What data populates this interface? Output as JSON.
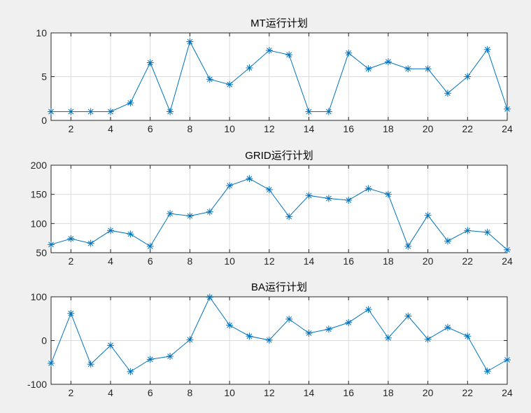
{
  "chart_data": [
    {
      "type": "line",
      "title": "MT运行计划",
      "xlabel": "",
      "ylabel": "",
      "x": [
        1,
        2,
        3,
        4,
        5,
        6,
        7,
        8,
        9,
        10,
        11,
        12,
        13,
        14,
        15,
        16,
        17,
        18,
        19,
        20,
        21,
        22,
        23,
        24
      ],
      "xlim": [
        1,
        24
      ],
      "ylim": [
        0,
        10
      ],
      "xticks": [
        2,
        4,
        6,
        8,
        10,
        12,
        14,
        16,
        18,
        20,
        22,
        24
      ],
      "yticks": [
        0,
        5,
        10
      ],
      "grid": true,
      "marker": "asterisk",
      "color": "#0072bd",
      "series": [
        {
          "values": [
            1,
            1,
            1,
            1,
            2,
            6.6,
            1,
            9,
            4.7,
            4.1,
            6,
            8,
            7.5,
            1,
            1,
            7.7,
            5.9,
            6.7,
            5.9,
            5.9,
            3.1,
            5,
            8.1,
            1.3
          ]
        }
      ]
    },
    {
      "type": "line",
      "title": "GRID运行计划",
      "xlabel": "",
      "ylabel": "",
      "x": [
        1,
        2,
        3,
        4,
        5,
        6,
        7,
        8,
        9,
        10,
        11,
        12,
        13,
        14,
        15,
        16,
        17,
        18,
        19,
        20,
        21,
        22,
        23,
        24
      ],
      "xlim": [
        1,
        24
      ],
      "ylim": [
        50,
        200
      ],
      "xticks": [
        2,
        4,
        6,
        8,
        10,
        12,
        14,
        16,
        18,
        20,
        22,
        24
      ],
      "yticks": [
        50,
        100,
        150,
        200
      ],
      "grid": true,
      "marker": "asterisk",
      "color": "#0072bd",
      "series": [
        {
          "values": [
            64,
            74,
            66,
            88,
            82,
            61,
            117,
            113,
            120,
            165,
            177,
            158,
            112,
            148,
            143,
            140,
            160,
            150,
            61,
            114,
            70,
            88,
            85,
            55
          ]
        }
      ]
    },
    {
      "type": "line",
      "title": "BA运行计划",
      "xlabel": "",
      "ylabel": "",
      "x": [
        1,
        2,
        3,
        4,
        5,
        6,
        7,
        8,
        9,
        10,
        11,
        12,
        13,
        14,
        15,
        16,
        17,
        18,
        19,
        20,
        21,
        22,
        23,
        24
      ],
      "xlim": [
        1,
        24
      ],
      "ylim": [
        -100,
        100
      ],
      "xticks": [
        2,
        4,
        6,
        8,
        10,
        12,
        14,
        16,
        18,
        20,
        22,
        24
      ],
      "yticks": [
        -100,
        0,
        100
      ],
      "grid": true,
      "marker": "asterisk",
      "color": "#0072bd",
      "series": [
        {
          "values": [
            -52,
            62,
            -54,
            -11,
            -71,
            -43,
            -36,
            2,
            99,
            35,
            10,
            1,
            49,
            17,
            26,
            41,
            71,
            6,
            56,
            3,
            30,
            10,
            -70,
            -44
          ]
        }
      ]
    }
  ]
}
